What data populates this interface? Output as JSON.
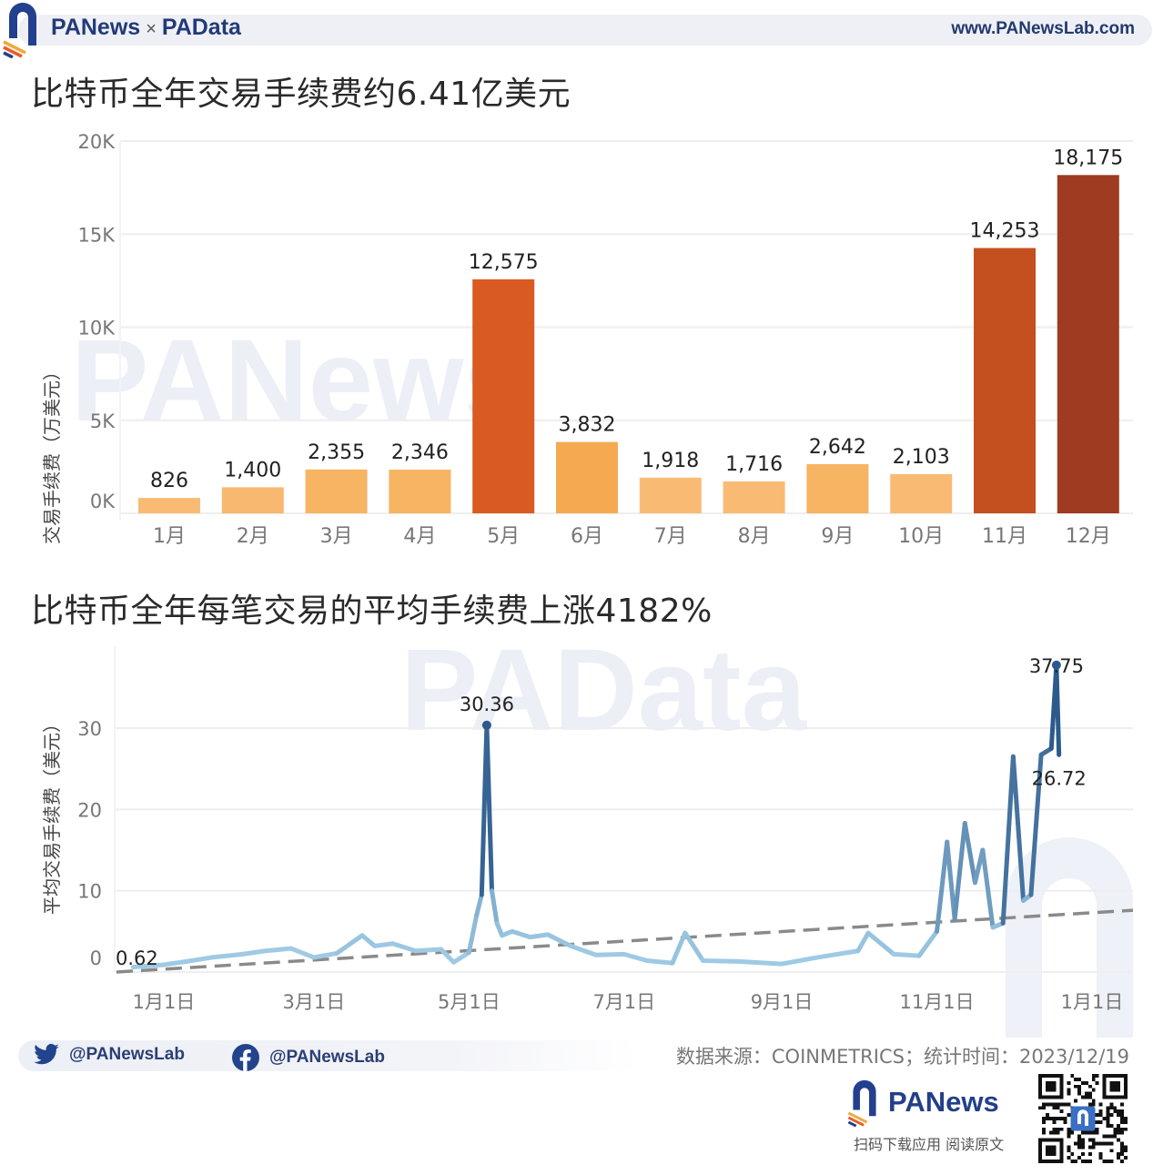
{
  "header": {
    "brand_left": "PANews",
    "brand_separator": "×",
    "brand_right": "PAData",
    "site_url": "www.PANewsLab.com"
  },
  "watermarks": {
    "top": "PANews",
    "bottom": "PAData"
  },
  "chart1": {
    "title": "比特币全年交易手续费约6.41亿美元",
    "ylabel": "交易手续费（万美元）",
    "yticks": [
      "0K",
      "5K",
      "10K",
      "15K",
      "20K"
    ]
  },
  "chart2": {
    "title": "比特币全年每笔交易的平均手续费上涨4182%",
    "ylabel": "平均交易手续费（美元）",
    "yticks": [
      "0",
      "10",
      "20",
      "30"
    ],
    "xticks": [
      "1月1日",
      "3月1日",
      "5月1日",
      "7月1日",
      "9月1日",
      "11月1日",
      "1月1日"
    ],
    "annotations": [
      "0.62",
      "30.36",
      "37.75",
      "26.72"
    ]
  },
  "chart_data": [
    {
      "type": "bar",
      "title": "比特币全年交易手续费约6.41亿美元",
      "xlabel": "",
      "ylabel": "交易手续费（万美元）",
      "categories": [
        "1月",
        "2月",
        "3月",
        "4月",
        "5月",
        "6月",
        "7月",
        "8月",
        "9月",
        "10月",
        "11月",
        "12月"
      ],
      "values": [
        826,
        1400,
        2355,
        2346,
        12575,
        3832,
        1918,
        1716,
        2642,
        2103,
        14253,
        18175
      ],
      "value_labels": [
        "826",
        "1,400",
        "2,355",
        "2,346",
        "12,575",
        "3,832",
        "1,918",
        "1,716",
        "2,642",
        "2,103",
        "14,253",
        "18,175"
      ],
      "colors": [
        "#f9bb74",
        "#f9b870",
        "#f7b463",
        "#f7b463",
        "#d95b22",
        "#f5aa52",
        "#f9bb74",
        "#f9bb74",
        "#f7b463",
        "#f9bb74",
        "#c4501f",
        "#9e3b20"
      ],
      "ylim": [
        0,
        20000
      ],
      "yticks": [
        "0K",
        "5K",
        "10K",
        "15K",
        "20K"
      ],
      "grid": true,
      "legend": "none"
    },
    {
      "type": "line",
      "title": "比特币全年每笔交易的平均手续费上涨4182%",
      "xlabel": "",
      "ylabel": "平均交易手续费（美元）",
      "ylim": [
        0,
        38
      ],
      "yticks": [
        0,
        10,
        20,
        30
      ],
      "xticks": [
        "1月1日",
        "3月1日",
        "5月1日",
        "7月1日",
        "9月1日",
        "11月1日",
        "1月1日"
      ],
      "grid": true,
      "legend": "none",
      "series": [
        {
          "name": "平均交易手续费",
          "x": [
            "2022-12-20",
            "2023-01-01",
            "2023-01-10",
            "2023-01-20",
            "2023-02-01",
            "2023-02-10",
            "2023-02-20",
            "2023-03-01",
            "2023-03-10",
            "2023-03-20",
            "2023-03-25",
            "2023-04-01",
            "2023-04-10",
            "2023-04-20",
            "2023-04-25",
            "2023-05-01",
            "2023-05-04",
            "2023-05-06",
            "2023-05-08",
            "2023-05-10",
            "2023-05-12",
            "2023-05-14",
            "2023-05-18",
            "2023-05-25",
            "2023-06-01",
            "2023-06-10",
            "2023-06-20",
            "2023-07-01",
            "2023-07-10",
            "2023-07-20",
            "2023-07-25",
            "2023-08-01",
            "2023-08-15",
            "2023-09-01",
            "2023-09-15",
            "2023-10-01",
            "2023-10-05",
            "2023-10-15",
            "2023-10-25",
            "2023-11-01",
            "2023-11-05",
            "2023-11-08",
            "2023-11-12",
            "2023-11-16",
            "2023-11-19",
            "2023-11-23",
            "2023-11-27",
            "2023-12-01",
            "2023-12-05",
            "2023-12-08",
            "2023-12-12",
            "2023-12-16",
            "2023-12-18",
            "2023-12-19"
          ],
          "values": [
            0.62,
            0.9,
            1.3,
            1.8,
            2.2,
            2.6,
            2.9,
            1.8,
            2.3,
            4.5,
            3.2,
            3.5,
            2.6,
            2.8,
            1.2,
            2.4,
            7.0,
            9.5,
            30.36,
            10.0,
            6.0,
            4.5,
            5.0,
            4.3,
            4.6,
            3.2,
            2.1,
            2.2,
            1.4,
            1.1,
            4.8,
            1.4,
            1.3,
            1.0,
            1.8,
            2.6,
            4.8,
            2.2,
            2.0,
            5.0,
            16.0,
            6.5,
            18.3,
            11.0,
            15.0,
            5.5,
            6.0,
            26.5,
            8.8,
            9.5,
            26.72,
            27.5,
            37.75,
            26.72
          ]
        },
        {
          "name": "趋势线",
          "style": "dashed",
          "x": [
            "2022-12-20",
            "2024-01-10"
          ],
          "values": [
            0.0,
            7.6
          ]
        }
      ]
    }
  ],
  "footer": {
    "twitter_handle": "@PANewsLab",
    "facebook_handle": "@PANewsLab",
    "source": "数据来源：COINMETRICS；统计时间：2023/12/19",
    "bottom_brand": "PANews",
    "app_caption": "扫码下载应用 阅读原文"
  }
}
